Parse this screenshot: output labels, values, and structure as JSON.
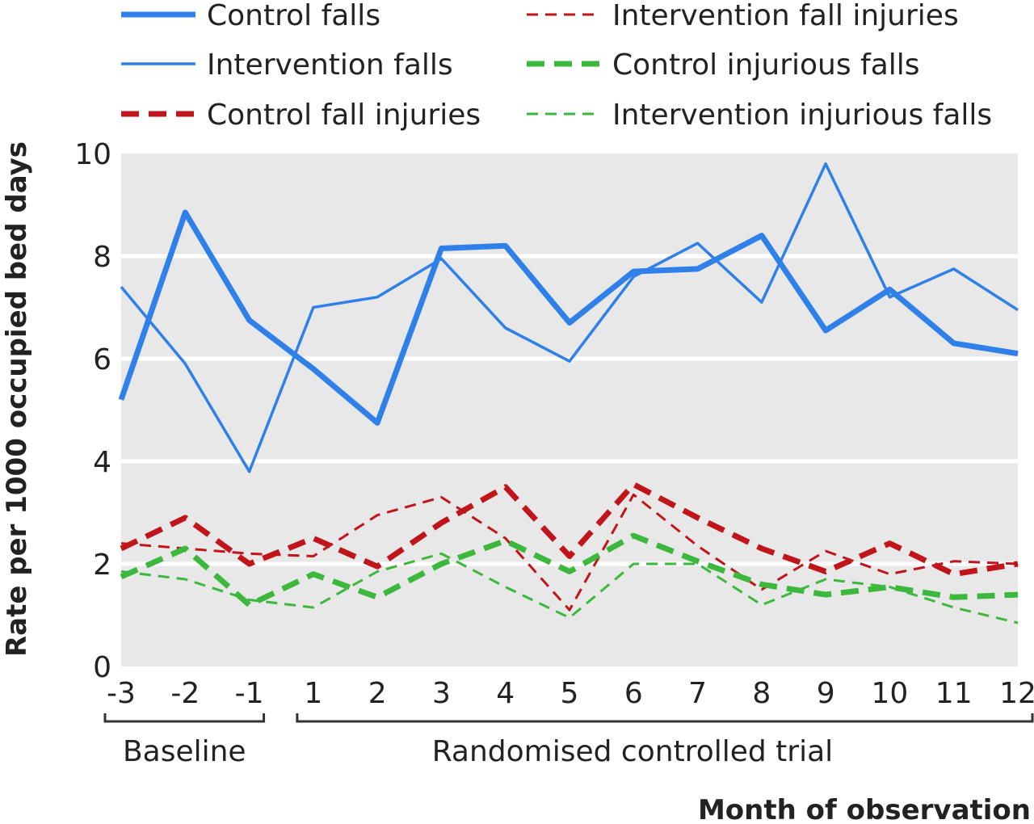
{
  "chart_data": {
    "type": "line",
    "title": "",
    "xlabel": "Month of observation",
    "ylabel": "Rate per 1000 occupied bed days",
    "ylim": [
      0,
      10
    ],
    "yticks": [
      "0",
      "2",
      "4",
      "6",
      "8",
      "10"
    ],
    "x": [
      -3,
      -2,
      -1,
      1,
      2,
      3,
      4,
      5,
      6,
      7,
      8,
      9,
      10,
      11,
      12
    ],
    "x_tick_labels": [
      "-3",
      "-2",
      "-1",
      "1",
      "2",
      "3",
      "4",
      "5",
      "6",
      "7",
      "8",
      "9",
      "10",
      "11",
      "12"
    ],
    "grid": true,
    "legend_position": "top",
    "periods": [
      {
        "label": "Baseline",
        "from": -3,
        "to": -1
      },
      {
        "label": "Randomised controlled trial",
        "from": 1,
        "to": 12
      }
    ],
    "series": [
      {
        "name": "Control falls",
        "color": "#2f80e8",
        "style": "solid-thick",
        "values": [
          5.2,
          8.85,
          6.75,
          5.8,
          4.75,
          8.15,
          8.2,
          6.7,
          7.7,
          7.75,
          8.4,
          6.55,
          7.35,
          6.3,
          6.1
        ]
      },
      {
        "name": "Intervention falls",
        "color": "#2f80e8",
        "style": "solid-thin",
        "values": [
          7.4,
          5.9,
          3.8,
          7.0,
          7.2,
          7.95,
          6.6,
          5.95,
          7.6,
          8.25,
          7.1,
          9.8,
          7.2,
          7.75,
          6.95
        ]
      },
      {
        "name": "Control fall injuries",
        "color": "#c0151b",
        "style": "dashed-thick",
        "values": [
          2.3,
          2.9,
          2.0,
          2.5,
          1.95,
          2.8,
          3.5,
          2.15,
          3.55,
          2.9,
          2.3,
          1.85,
          2.4,
          1.8,
          2.0
        ]
      },
      {
        "name": "Intervention fall injuries",
        "color": "#c0151b",
        "style": "dashed-thin",
        "values": [
          2.4,
          2.3,
          2.2,
          2.15,
          2.95,
          3.3,
          2.5,
          1.1,
          3.35,
          2.35,
          1.5,
          2.25,
          1.8,
          2.05,
          2.0
        ]
      },
      {
        "name": "Control injurious falls",
        "color": "#3cb83c",
        "style": "dashed-thick",
        "values": [
          1.75,
          2.3,
          1.2,
          1.8,
          1.35,
          2.0,
          2.45,
          1.85,
          2.55,
          2.05,
          1.6,
          1.4,
          1.55,
          1.35,
          1.4
        ]
      },
      {
        "name": "Intervention injurious falls",
        "color": "#3cb83c",
        "style": "dashed-thin",
        "values": [
          1.85,
          1.7,
          1.3,
          1.15,
          1.85,
          2.2,
          1.55,
          0.95,
          2.0,
          2.0,
          1.2,
          1.7,
          1.55,
          1.15,
          0.85
        ]
      }
    ],
    "legend_columns": [
      [
        "Control falls",
        "Intervention falls",
        "Control fall injuries"
      ],
      [
        "Intervention fall injuries",
        "Control injurious falls",
        "Intervention injurious falls"
      ]
    ]
  }
}
